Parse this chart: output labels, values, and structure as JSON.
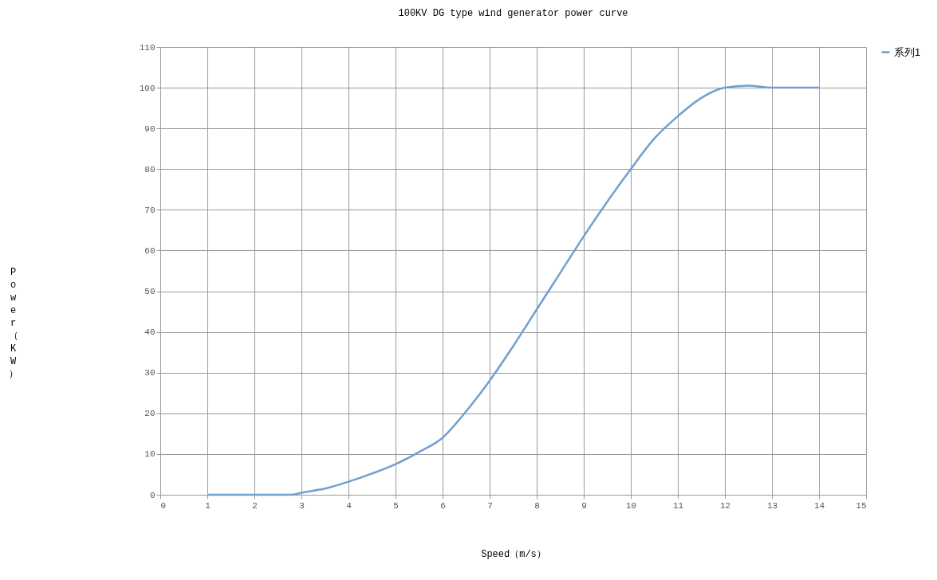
{
  "chart_data": {
    "type": "line",
    "title": "100KV DG type wind generator power curve",
    "xlabel": "Speed（m/s）",
    "ylabel": "Power（KW）",
    "x": [
      1,
      2,
      2.8,
      3,
      3.5,
      4,
      4.5,
      5,
      5.5,
      6,
      6.5,
      7,
      7.5,
      8,
      8.5,
      9,
      9.5,
      10,
      10.5,
      11,
      11.5,
      12,
      12.5,
      13,
      14
    ],
    "series": [
      {
        "name": "系列1",
        "color": "#6fa0d0",
        "values": [
          0,
          0,
          0,
          0.5,
          1.5,
          3.2,
          5.2,
          7.5,
          10.5,
          14,
          20.5,
          28,
          36.5,
          45.5,
          54.5,
          63.5,
          72,
          80,
          87.5,
          93,
          97.5,
          100,
          100.5,
          100,
          100
        ]
      }
    ],
    "xlim": [
      0,
      15
    ],
    "xticks": [
      0,
      1,
      2,
      3,
      4,
      5,
      6,
      7,
      8,
      9,
      10,
      11,
      12,
      13,
      14,
      15
    ],
    "ylim": [
      0,
      110
    ],
    "yticks": [
      0,
      10,
      20,
      30,
      40,
      50,
      60,
      70,
      80,
      90,
      100,
      110
    ],
    "grid": true,
    "legend": "right",
    "marker": "none",
    "line_style": "solid"
  }
}
